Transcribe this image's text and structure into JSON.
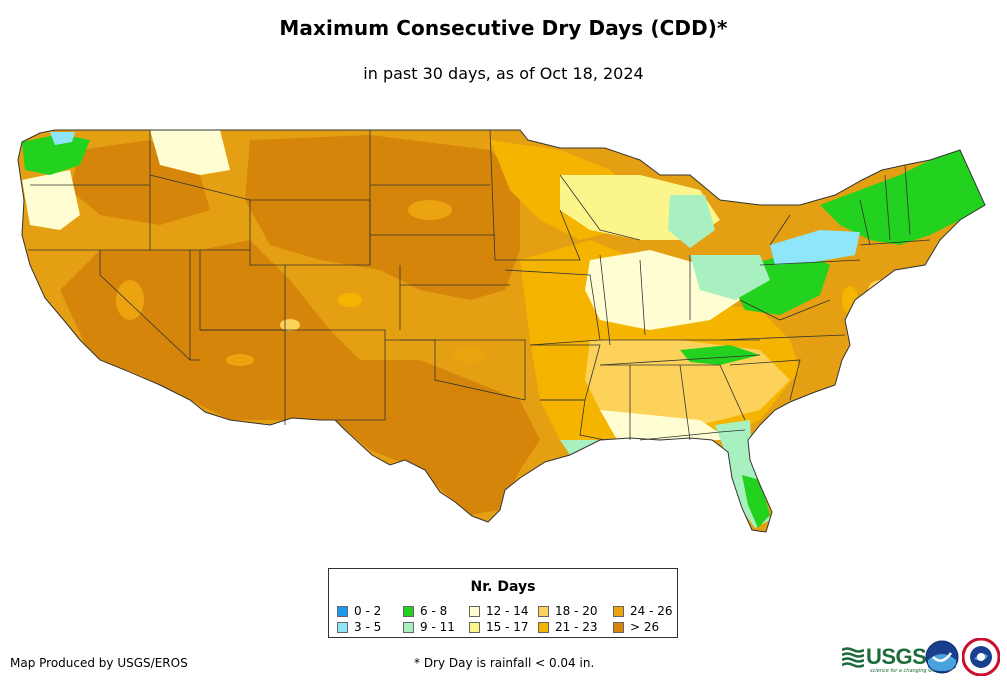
{
  "title": "Maximum Consecutive Dry Days (CDD)*",
  "subtitle": "in past 30 days, as of Oct 18, 2024",
  "legend": {
    "title": "Nr. Days",
    "items": [
      {
        "label": "0 - 2",
        "color": "#1a9bf0"
      },
      {
        "label": "3 - 5",
        "color": "#8fe6fa"
      },
      {
        "label": "6 - 8",
        "color": "#22d21e"
      },
      {
        "label": "9 - 11",
        "color": "#a8f0c0"
      },
      {
        "label": "12 - 14",
        "color": "#fffed2"
      },
      {
        "label": "15 - 17",
        "color": "#fbf58c"
      },
      {
        "label": "18 - 20",
        "color": "#fdd25a"
      },
      {
        "label": "21 - 23",
        "color": "#f5b400"
      },
      {
        "label": "24 - 26",
        "color": "#eba30f"
      },
      {
        "label": "> 26",
        "color": "#d4850a"
      }
    ]
  },
  "credit": "Map Produced by USGS/EROS",
  "footnote": "* Dry Day is rainfall < 0.04 in.",
  "logos": {
    "usgs_text": "USGS",
    "usgs_tagline": "science for a changing world"
  }
}
